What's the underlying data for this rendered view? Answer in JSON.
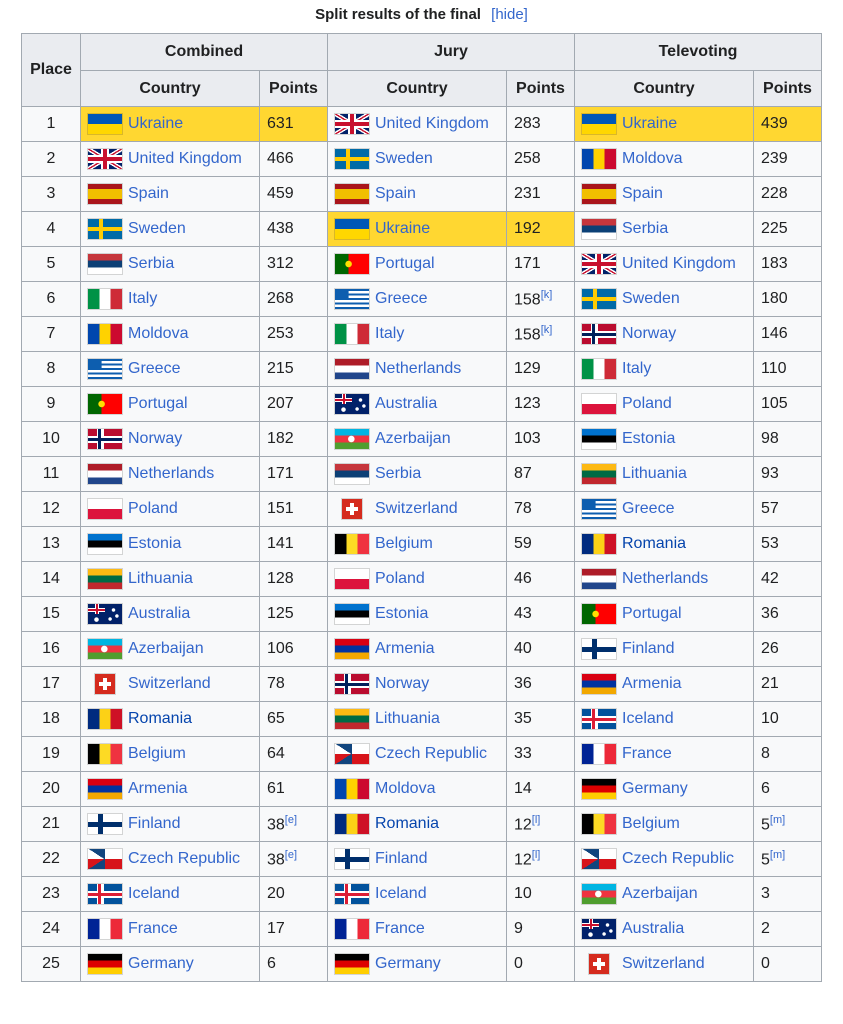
{
  "caption": {
    "title": "Split results of the final",
    "hide_label": "[hide]"
  },
  "headers": {
    "place": "Place",
    "groups": [
      "Combined",
      "Jury",
      "Televoting"
    ],
    "country": "Country",
    "points": "Points"
  },
  "flags": {
    "ukraine": "linear-gradient(#0057b7 50%, #ffd700 50%)",
    "united-kingdom": "linear-gradient(#c8102e,#c8102e) center/100% 4px no-repeat, linear-gradient(#c8102e,#c8102e) center/4px 100% no-repeat, linear-gradient(#fff,#fff) center/100% 8px no-repeat, linear-gradient(#fff,#fff) center/8px 100% no-repeat, linear-gradient(31deg, transparent 44%, #fff 44%, #fff 48%, #c8102e 48%, #c8102e 52%, #fff 52%, #fff 56%, transparent 56%), linear-gradient(-31deg, transparent 44%, #fff 44%, #fff 48%, #c8102e 48%, #c8102e 52%, #fff 52%, #fff 56%, transparent 56%), #012169",
    "spain": "linear-gradient(#aa151b 25%, #f1bf00 25% 75%, #aa151b 75%)",
    "sweden": "linear-gradient(#fecc02,#fecc02) 0 50%/100% 4px no-repeat, linear-gradient(#fecc02,#fecc02) 35% 0/4px 100% no-repeat, #006aa7",
    "serbia": "linear-gradient(#c6363c 33.3%, #0c4076 33.3% 66.6%, #ffffff 66.6%)",
    "italy": "linear-gradient(90deg, #009246 33.3%, #ffffff 33.3% 66.6%, #ce2b37 66.6%)",
    "moldova": "linear-gradient(90deg, #0046ae 33.3%, #ffd200 33.3% 66.6%, #cc092f 66.6%)",
    "greece": "linear-gradient(#0d5eaf,#0d5eaf) 0 0/40% 55% no-repeat, repeating-linear-gradient(#0d5eaf 0 2.22px, #ffffff 2.22px 4.44px)",
    "portugal": "radial-gradient(circle at 40% 50%, #ffe000 0 3px, transparent 3.5px), linear-gradient(90deg, #006600 40%, #ff0000 40%)",
    "norway": "linear-gradient(#00205b,#00205b) 0 50%/100% 3px no-repeat, linear-gradient(#00205b,#00205b) 33% 0/3px 100% no-repeat, linear-gradient(#fff,#fff) 0 50%/100% 7px no-repeat, linear-gradient(#fff,#fff) 32% 0/7px 100% no-repeat, #ba0c2f",
    "netherlands": "linear-gradient(#ae1c28 33.3%, #ffffff 33.3% 66.6%, #21468b 66.6%)",
    "poland": "linear-gradient(#ffffff 50%, #dc143c 50%)",
    "estonia": "linear-gradient(#0072ce 33.3%, #000000 33.3% 66.6%, #ffffff 66.6%)",
    "lithuania": "linear-gradient(#fdb913 33.3%, #006a44 33.3% 66.6%, #c1272d 66.6%)",
    "australia": "radial-gradient(circle at 75% 30%, #fff 0 1.5px, transparent 2px), radial-gradient(circle at 85% 60%, #fff 0 1.5px, transparent 2px), radial-gradient(circle at 65% 75%, #fff 0 1.5px, transparent 2px), radial-gradient(circle at 25% 78%, #fff 0 2px, transparent 2.5px), linear-gradient(#c8102e,#c8102e) 0 25%/50% 2px no-repeat, linear-gradient(#c8102e,#c8102e) 25% 0/2px 50% no-repeat, linear-gradient(#fff,#fff) 0 24%/50% 4px no-repeat, linear-gradient(#fff,#fff) 24% 0/4px 50% no-repeat, #012169",
    "azerbaijan": "radial-gradient(circle at 48% 50%, #ffffff 0 3px, transparent 3.5px), linear-gradient(#00b5e2 33.3%, #ef3340 33.3% 66.6%, #509e2f 66.6%)",
    "switzerland": "linear-gradient(#fff,#fff) center/60% 20% no-repeat, linear-gradient(#fff,#fff) center/20% 60% no-repeat, #d52b1e",
    "romania": "linear-gradient(90deg, #002b7f 33.3%, #fcd116 33.3% 66.6%, #ce1126 66.6%)",
    "belgium": "linear-gradient(90deg, #000000 33.3%, #fdda24 33.3% 66.6%, #ef3340 66.6%)",
    "armenia": "linear-gradient(#d90012 33.3%, #0033a0 33.3% 66.6%, #f2a800 66.6%)",
    "finland": "linear-gradient(#002f6c,#002f6c) 0 50%/100% 5px no-repeat, linear-gradient(#002f6c,#002f6c) 33% 0/5px 100% no-repeat, #ffffff",
    "czech-republic": "linear-gradient(33deg, transparent 50%, #11457e 50%) 0 0/50% 50% no-repeat, linear-gradient(-33deg, #11457e 50%, transparent 50%) 0 100%/50% 50% no-repeat, linear-gradient(#ffffff 50%, #d7141a 50%)",
    "iceland": "linear-gradient(#dc1e35,#dc1e35) 0 50%/100% 3px no-repeat, linear-gradient(#dc1e35,#dc1e35) 33% 0/3px 100% no-repeat, linear-gradient(#fff,#fff) 0 50%/100% 7px no-repeat, linear-gradient(#fff,#fff) 32% 0/7px 100% no-repeat, #02529c",
    "france": "linear-gradient(90deg, #002395 33.3%, #ffffff 33.3% 66.6%, #ed2939 66.6%)",
    "germany": "linear-gradient(#000000 33.3%, #dd0000 33.3% 66.6%, #ffce00 66.6%)"
  },
  "rows": [
    {
      "place": "1",
      "combined": {
        "country": "Ukraine",
        "flag": "ukraine",
        "points": "631",
        "win": true
      },
      "jury": {
        "country": "United Kingdom",
        "flag": "united-kingdom",
        "points": "283"
      },
      "televoting": {
        "country": "Ukraine",
        "flag": "ukraine",
        "points": "439",
        "win": true
      }
    },
    {
      "place": "2",
      "combined": {
        "country": "United Kingdom",
        "flag": "united-kingdom",
        "points": "466"
      },
      "jury": {
        "country": "Sweden",
        "flag": "sweden",
        "points": "258"
      },
      "televoting": {
        "country": "Moldova",
        "flag": "moldova",
        "points": "239"
      }
    },
    {
      "place": "3",
      "combined": {
        "country": "Spain",
        "flag": "spain",
        "points": "459"
      },
      "jury": {
        "country": "Spain",
        "flag": "spain",
        "points": "231"
      },
      "televoting": {
        "country": "Spain",
        "flag": "spain",
        "points": "228"
      }
    },
    {
      "place": "4",
      "combined": {
        "country": "Sweden",
        "flag": "sweden",
        "points": "438"
      },
      "jury": {
        "country": "Ukraine",
        "flag": "ukraine",
        "points": "192",
        "win": true
      },
      "televoting": {
        "country": "Serbia",
        "flag": "serbia",
        "points": "225"
      }
    },
    {
      "place": "5",
      "combined": {
        "country": "Serbia",
        "flag": "serbia",
        "points": "312"
      },
      "jury": {
        "country": "Portugal",
        "flag": "portugal",
        "points": "171"
      },
      "televoting": {
        "country": "United Kingdom",
        "flag": "united-kingdom",
        "points": "183"
      }
    },
    {
      "place": "6",
      "combined": {
        "country": "Italy",
        "flag": "italy",
        "points": "268"
      },
      "jury": {
        "country": "Greece",
        "flag": "greece",
        "points": "158",
        "note": "[k]"
      },
      "televoting": {
        "country": "Sweden",
        "flag": "sweden",
        "points": "180"
      }
    },
    {
      "place": "7",
      "combined": {
        "country": "Moldova",
        "flag": "moldova",
        "points": "253"
      },
      "jury": {
        "country": "Italy",
        "flag": "italy",
        "points": "158",
        "note": "[k]"
      },
      "televoting": {
        "country": "Norway",
        "flag": "norway",
        "points": "146"
      }
    },
    {
      "place": "8",
      "combined": {
        "country": "Greece",
        "flag": "greece",
        "points": "215"
      },
      "jury": {
        "country": "Netherlands",
        "flag": "netherlands",
        "points": "129"
      },
      "televoting": {
        "country": "Italy",
        "flag": "italy",
        "points": "110"
      }
    },
    {
      "place": "9",
      "combined": {
        "country": "Portugal",
        "flag": "portugal",
        "points": "207"
      },
      "jury": {
        "country": "Australia",
        "flag": "australia",
        "points": "123"
      },
      "televoting": {
        "country": "Poland",
        "flag": "poland",
        "points": "105"
      }
    },
    {
      "place": "10",
      "combined": {
        "country": "Norway",
        "flag": "norway",
        "points": "182"
      },
      "jury": {
        "country": "Azerbaijan",
        "flag": "azerbaijan",
        "points": "103"
      },
      "televoting": {
        "country": "Estonia",
        "flag": "estonia",
        "points": "98"
      }
    },
    {
      "place": "11",
      "combined": {
        "country": "Netherlands",
        "flag": "netherlands",
        "points": "171"
      },
      "jury": {
        "country": "Serbia",
        "flag": "serbia",
        "points": "87"
      },
      "televoting": {
        "country": "Lithuania",
        "flag": "lithuania",
        "points": "93"
      }
    },
    {
      "place": "12",
      "combined": {
        "country": "Poland",
        "flag": "poland",
        "points": "151"
      },
      "jury": {
        "country": "Switzerland",
        "flag": "switzerland",
        "points": "78",
        "square": true
      },
      "televoting": {
        "country": "Greece",
        "flag": "greece",
        "points": "57"
      }
    },
    {
      "place": "13",
      "combined": {
        "country": "Estonia",
        "flag": "estonia",
        "points": "141"
      },
      "jury": {
        "country": "Belgium",
        "flag": "belgium",
        "points": "59"
      },
      "televoting": {
        "country": "Romania",
        "flag": "romania",
        "points": "53",
        "visited": true
      }
    },
    {
      "place": "14",
      "combined": {
        "country": "Lithuania",
        "flag": "lithuania",
        "points": "128"
      },
      "jury": {
        "country": "Poland",
        "flag": "poland",
        "points": "46"
      },
      "televoting": {
        "country": "Netherlands",
        "flag": "netherlands",
        "points": "42"
      }
    },
    {
      "place": "15",
      "combined": {
        "country": "Australia",
        "flag": "australia",
        "points": "125"
      },
      "jury": {
        "country": "Estonia",
        "flag": "estonia",
        "points": "43"
      },
      "televoting": {
        "country": "Portugal",
        "flag": "portugal",
        "points": "36"
      }
    },
    {
      "place": "16",
      "combined": {
        "country": "Azerbaijan",
        "flag": "azerbaijan",
        "points": "106"
      },
      "jury": {
        "country": "Armenia",
        "flag": "armenia",
        "points": "40"
      },
      "televoting": {
        "country": "Finland",
        "flag": "finland",
        "points": "26"
      }
    },
    {
      "place": "17",
      "combined": {
        "country": "Switzerland",
        "flag": "switzerland",
        "points": "78",
        "square": true
      },
      "jury": {
        "country": "Norway",
        "flag": "norway",
        "points": "36"
      },
      "televoting": {
        "country": "Armenia",
        "flag": "armenia",
        "points": "21"
      }
    },
    {
      "place": "18",
      "combined": {
        "country": "Romania",
        "flag": "romania",
        "points": "65",
        "visited": true
      },
      "jury": {
        "country": "Lithuania",
        "flag": "lithuania",
        "points": "35"
      },
      "televoting": {
        "country": "Iceland",
        "flag": "iceland",
        "points": "10"
      }
    },
    {
      "place": "19",
      "combined": {
        "country": "Belgium",
        "flag": "belgium",
        "points": "64"
      },
      "jury": {
        "country": "Czech Republic",
        "flag": "czech-republic",
        "points": "33"
      },
      "televoting": {
        "country": "France",
        "flag": "france",
        "points": "8"
      }
    },
    {
      "place": "20",
      "combined": {
        "country": "Armenia",
        "flag": "armenia",
        "points": "61"
      },
      "jury": {
        "country": "Moldova",
        "flag": "moldova",
        "points": "14"
      },
      "televoting": {
        "country": "Germany",
        "flag": "germany",
        "points": "6"
      }
    },
    {
      "place": "21",
      "combined": {
        "country": "Finland",
        "flag": "finland",
        "points": "38",
        "note": "[e]"
      },
      "jury": {
        "country": "Romania",
        "flag": "romania",
        "points": "12",
        "note": "[l]",
        "visited": true
      },
      "televoting": {
        "country": "Belgium",
        "flag": "belgium",
        "points": "5",
        "note": "[m]"
      }
    },
    {
      "place": "22",
      "combined": {
        "country": "Czech Republic",
        "flag": "czech-republic",
        "points": "38",
        "note": "[e]"
      },
      "jury": {
        "country": "Finland",
        "flag": "finland",
        "points": "12",
        "note": "[l]"
      },
      "televoting": {
        "country": "Czech Republic",
        "flag": "czech-republic",
        "points": "5",
        "note": "[m]"
      }
    },
    {
      "place": "23",
      "combined": {
        "country": "Iceland",
        "flag": "iceland",
        "points": "20"
      },
      "jury": {
        "country": "Iceland",
        "flag": "iceland",
        "points": "10"
      },
      "televoting": {
        "country": "Azerbaijan",
        "flag": "azerbaijan",
        "points": "3"
      }
    },
    {
      "place": "24",
      "combined": {
        "country": "France",
        "flag": "france",
        "points": "17"
      },
      "jury": {
        "country": "France",
        "flag": "france",
        "points": "9"
      },
      "televoting": {
        "country": "Australia",
        "flag": "australia",
        "points": "2"
      }
    },
    {
      "place": "25",
      "combined": {
        "country": "Germany",
        "flag": "germany",
        "points": "6"
      },
      "jury": {
        "country": "Germany",
        "flag": "germany",
        "points": "0"
      },
      "televoting": {
        "country": "Switzerland",
        "flag": "switzerland",
        "points": "0",
        "square": true
      }
    }
  ]
}
